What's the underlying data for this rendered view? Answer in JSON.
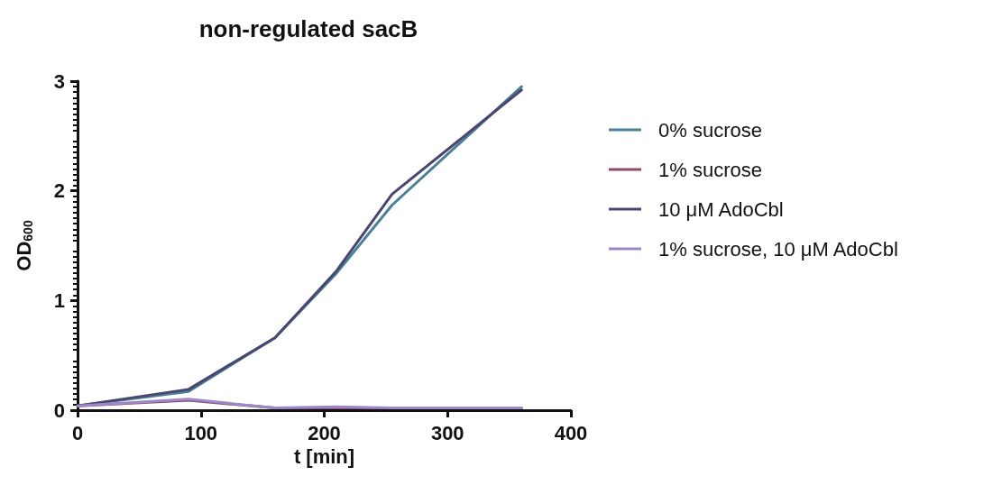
{
  "chart_data": {
    "type": "line",
    "title": "non-regulated sacB",
    "xlabel": "t [min]",
    "ylabel": "OD$_{600}$",
    "x": [
      0,
      90,
      160,
      210,
      255,
      360
    ],
    "series": [
      {
        "name": "0% sucrose",
        "color": "#4a7f9a",
        "values": [
          0.04,
          0.17,
          0.66,
          1.25,
          1.87,
          2.95
        ]
      },
      {
        "name": "1% sucrose",
        "color": "#8a4c6a",
        "values": [
          0.04,
          0.09,
          0.02,
          0.02,
          0.02,
          0.02
        ]
      },
      {
        "name": "10 μM AdoCbl",
        "color": "#4b4670",
        "values": [
          0.04,
          0.19,
          0.66,
          1.27,
          1.97,
          2.92
        ]
      },
      {
        "name": "1% sucrose, 10 μM AdoCbl",
        "color": "#9a88c8",
        "values": [
          0.04,
          0.1,
          0.02,
          0.03,
          0.02,
          0.02
        ]
      }
    ],
    "xlim": [
      0,
      400
    ],
    "xticks": [
      0,
      100,
      200,
      300,
      400
    ],
    "ylim": [
      0,
      3
    ],
    "yticks": [
      0,
      1,
      2,
      3
    ],
    "grid": false,
    "legend": "right",
    "marker": "none",
    "line_style": "solid"
  }
}
